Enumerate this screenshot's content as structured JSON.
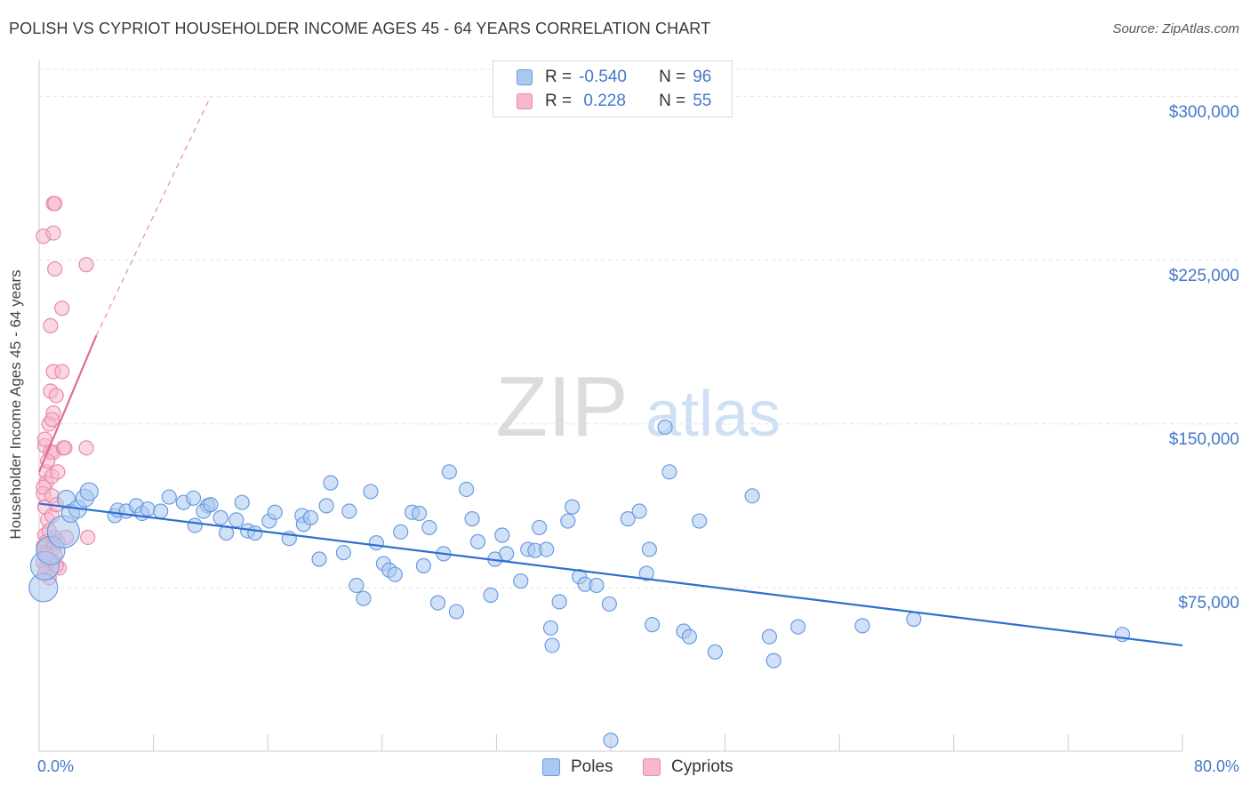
{
  "header": {
    "title": "POLISH VS CYPRIOT HOUSEHOLDER INCOME AGES 45 - 64 YEARS CORRELATION CHART",
    "source": "Source: ZipAtlas.com"
  },
  "legend": {
    "rows": [
      {
        "r_label": "R =",
        "r_value": "-0.540",
        "n_label": "N =",
        "n_value": "96"
      },
      {
        "r_label": "R =",
        "r_value": " 0.228",
        "n_label": "N =",
        "n_value": "55"
      }
    ]
  },
  "bottom_legend": {
    "poles": "Poles",
    "cypriots": "Cypriots"
  },
  "watermark": {
    "zip": "ZIP",
    "atlas": "atlas"
  },
  "colors": {
    "poles_fill": "#a9c9f0",
    "poles_stroke": "#6a9be0",
    "poles_line": "#2f6fd0",
    "cypriots_fill": "#f5b8cc",
    "cypriots_stroke": "#e98aaa",
    "cypriots_line": "#e26c96",
    "tick_text": "#4577c8",
    "grid": "#e2e2e2"
  },
  "chart_data": {
    "type": "scatter",
    "title": "POLISH VS CYPRIOT HOUSEHOLDER INCOME AGES 45 - 64 YEARS CORRELATION CHART",
    "xlabel": "",
    "ylabel": "Householder Income Ages 45 - 64 years",
    "xlim": [
      0,
      80
    ],
    "ylim": [
      0,
      312500
    ],
    "x_tick_labels": [
      "0.0%",
      "80.0%"
    ],
    "y_ticks": [
      75000,
      150000,
      225000,
      300000
    ],
    "y_tick_labels": [
      "$75,000",
      "$150,000",
      "$225,000",
      "$300,000"
    ],
    "grid": true,
    "legend_position": "top-center",
    "series": [
      {
        "name": "Poles",
        "R": -0.54,
        "N": 96,
        "trend": {
          "x0": 0,
          "y0": 113500,
          "x1": 80,
          "y1": 48500
        },
        "points": [
          [
            0.3,
            75000,
            16
          ],
          [
            0.4,
            85000,
            16
          ],
          [
            0.8,
            92000,
            16
          ],
          [
            1.7,
            100500,
            18
          ],
          [
            1.9,
            115500,
            10
          ],
          [
            2.2,
            109000,
            10
          ],
          [
            2.7,
            111000,
            10
          ],
          [
            3.2,
            116000,
            10
          ],
          [
            3.5,
            119000,
            10
          ],
          [
            5.3,
            108000,
            8
          ],
          [
            5.5,
            110500,
            8
          ],
          [
            6.1,
            110000,
            8
          ],
          [
            6.8,
            112500,
            8
          ],
          [
            7.2,
            109000,
            8
          ],
          [
            7.6,
            111000,
            8
          ],
          [
            8.5,
            110000,
            8
          ],
          [
            9.1,
            116500,
            8
          ],
          [
            10.1,
            114000,
            8
          ],
          [
            10.8,
            116000,
            8
          ],
          [
            11.8,
            112500,
            8
          ],
          [
            10.9,
            103500,
            8
          ],
          [
            11.5,
            110000,
            8
          ],
          [
            12.0,
            113000,
            8
          ],
          [
            12.7,
            107000,
            8
          ],
          [
            13.1,
            100000,
            8
          ],
          [
            13.8,
            106000,
            8
          ],
          [
            14.2,
            114000,
            8
          ],
          [
            14.6,
            101000,
            8
          ],
          [
            15.1,
            100000,
            8
          ],
          [
            16.1,
            105500,
            8
          ],
          [
            16.5,
            109500,
            8
          ],
          [
            17.5,
            97500,
            8
          ],
          [
            18.4,
            108000,
            8
          ],
          [
            18.5,
            104000,
            8
          ],
          [
            19.0,
            107000,
            8
          ],
          [
            19.6,
            88000,
            8
          ],
          [
            20.1,
            112500,
            8
          ],
          [
            20.4,
            123000,
            8
          ],
          [
            21.3,
            91000,
            8
          ],
          [
            21.7,
            110000,
            8
          ],
          [
            22.2,
            76000,
            8
          ],
          [
            22.7,
            70000,
            8
          ],
          [
            23.2,
            119000,
            8
          ],
          [
            23.6,
            95500,
            8
          ],
          [
            24.1,
            86000,
            8
          ],
          [
            24.5,
            83000,
            8
          ],
          [
            24.9,
            81000,
            8
          ],
          [
            25.3,
            100500,
            8
          ],
          [
            26.1,
            109500,
            8
          ],
          [
            26.6,
            109000,
            8
          ],
          [
            26.9,
            85000,
            8
          ],
          [
            27.3,
            102500,
            8
          ],
          [
            27.9,
            68000,
            8
          ],
          [
            28.3,
            90500,
            8
          ],
          [
            28.7,
            128000,
            8
          ],
          [
            29.2,
            64000,
            8
          ],
          [
            29.9,
            120000,
            8
          ],
          [
            30.3,
            106500,
            8
          ],
          [
            30.7,
            96000,
            8
          ],
          [
            31.6,
            71500,
            8
          ],
          [
            31.9,
            88000,
            8
          ],
          [
            32.4,
            99000,
            8
          ],
          [
            32.7,
            90500,
            8
          ],
          [
            33.7,
            78000,
            8
          ],
          [
            34.2,
            92500,
            8
          ],
          [
            34.7,
            92000,
            8
          ],
          [
            35.0,
            102500,
            8
          ],
          [
            35.5,
            92500,
            8
          ],
          [
            35.8,
            56500,
            8
          ],
          [
            35.9,
            48500,
            8
          ],
          [
            36.4,
            68500,
            8
          ],
          [
            37.0,
            105500,
            8
          ],
          [
            37.3,
            112000,
            8
          ],
          [
            37.8,
            80000,
            8
          ],
          [
            38.2,
            76500,
            8
          ],
          [
            39.0,
            76000,
            8
          ],
          [
            39.9,
            67500,
            8
          ],
          [
            40.0,
            5000,
            8
          ],
          [
            41.2,
            106500,
            8
          ],
          [
            42.5,
            81500,
            8
          ],
          [
            42.7,
            92500,
            8
          ],
          [
            42.9,
            58000,
            8
          ],
          [
            43.8,
            148500,
            8
          ],
          [
            44.1,
            128000,
            8
          ],
          [
            45.1,
            55000,
            8
          ],
          [
            45.5,
            52500,
            8
          ],
          [
            46.2,
            105500,
            8
          ],
          [
            47.3,
            45500,
            8
          ],
          [
            49.9,
            117000,
            8
          ],
          [
            51.1,
            52500,
            8
          ],
          [
            51.4,
            41500,
            8
          ],
          [
            53.1,
            57000,
            8
          ],
          [
            57.6,
            57500,
            8
          ],
          [
            61.2,
            60500,
            8
          ],
          [
            75.8,
            53500,
            8
          ],
          [
            42.0,
            110000,
            8
          ]
        ]
      },
      {
        "name": "Cypriots",
        "R": 0.228,
        "N": 55,
        "trend": {
          "x0": 0,
          "y0": 128000,
          "x1": 4,
          "y1": 190500,
          "dash_to_x": 12,
          "dash_to_y": 300000
        },
        "points": [
          [
            0.3,
            236000,
            8
          ],
          [
            0.4,
            140000,
            8
          ],
          [
            0.4,
            143000,
            8
          ],
          [
            0.5,
            128000,
            8
          ],
          [
            0.5,
            123000,
            8
          ],
          [
            0.3,
            118000,
            8
          ],
          [
            0.3,
            121000,
            8
          ],
          [
            0.4,
            112000,
            8
          ],
          [
            0.6,
            106000,
            8
          ],
          [
            0.4,
            99000,
            8
          ],
          [
            0.5,
            96000,
            8
          ],
          [
            0.3,
            94000,
            8
          ],
          [
            0.4,
            91000,
            8
          ],
          [
            0.6,
            88500,
            8
          ],
          [
            0.3,
            86500,
            8
          ],
          [
            0.5,
            84000,
            8
          ],
          [
            0.4,
            81500,
            8
          ],
          [
            0.7,
            79500,
            8
          ],
          [
            0.8,
            195000,
            8
          ],
          [
            0.8,
            165000,
            8
          ],
          [
            0.7,
            150000,
            8
          ],
          [
            0.8,
            137000,
            8
          ],
          [
            0.9,
            126000,
            8
          ],
          [
            0.9,
            117000,
            8
          ],
          [
            0.9,
            108000,
            8
          ],
          [
            1.0,
            251000,
            8
          ],
          [
            1.0,
            237500,
            8
          ],
          [
            1.0,
            174000,
            8
          ],
          [
            1.0,
            155000,
            8
          ],
          [
            1.0,
            137000,
            8
          ],
          [
            1.1,
            98000,
            8
          ],
          [
            1.0,
            95000,
            8
          ],
          [
            1.0,
            93000,
            8
          ],
          [
            1.1,
            90000,
            8
          ],
          [
            1.0,
            87000,
            8
          ],
          [
            1.1,
            251000,
            8
          ],
          [
            1.1,
            221000,
            8
          ],
          [
            1.2,
            163000,
            8
          ],
          [
            1.3,
            128000,
            8
          ],
          [
            1.2,
            113000,
            8
          ],
          [
            1.3,
            96000,
            8
          ],
          [
            1.4,
            84000,
            8
          ],
          [
            1.6,
            203000,
            8
          ],
          [
            1.6,
            174000,
            8
          ],
          [
            1.7,
            139000,
            8
          ],
          [
            1.8,
            139000,
            8
          ],
          [
            1.9,
            98000,
            8
          ],
          [
            3.3,
            223000,
            8
          ],
          [
            3.3,
            139000,
            8
          ],
          [
            3.4,
            98000,
            8
          ],
          [
            0.9,
            152000,
            8
          ],
          [
            0.6,
            133000,
            8
          ],
          [
            0.7,
            101000,
            8
          ],
          [
            1.2,
            85000,
            8
          ],
          [
            0.5,
            90000,
            8
          ]
        ]
      }
    ]
  }
}
